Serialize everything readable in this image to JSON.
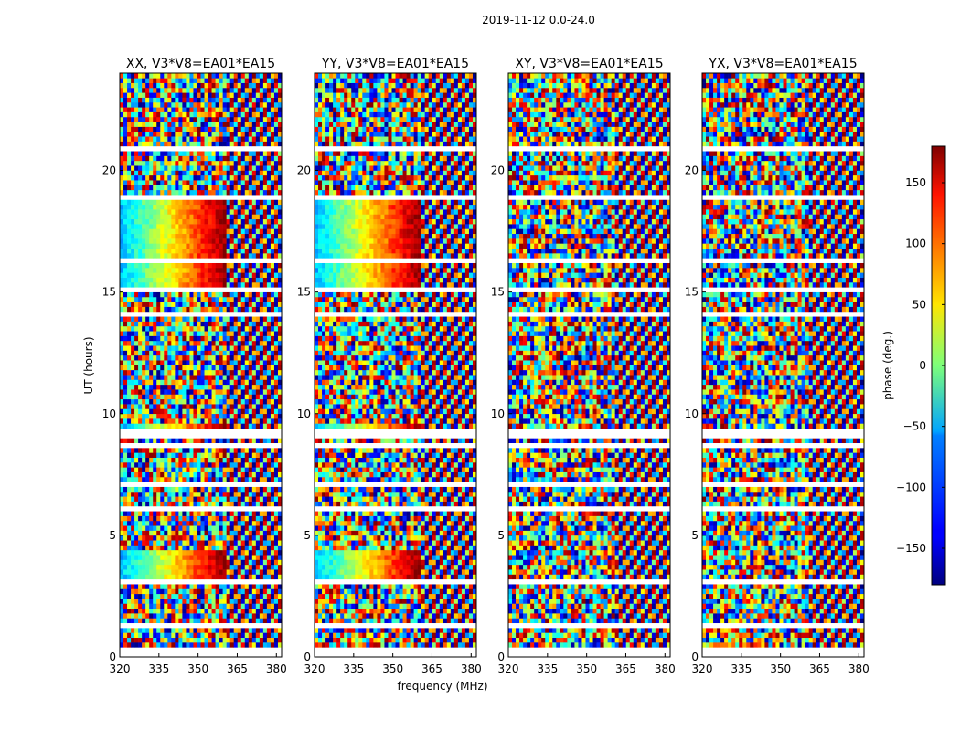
{
  "figure": {
    "suptitle": "2019-11-12 0.0-24.0"
  },
  "chart_data": {
    "type": "heatmap",
    "title": "2019-11-12 0.0-24.0",
    "xlabel": "frequency (MHz)",
    "ylabel": "UT (hours)",
    "xlim": [
      320,
      382
    ],
    "ylim": [
      0,
      24
    ],
    "xticks": [
      "320",
      "335",
      "350",
      "365",
      "380"
    ],
    "yticks": [
      "0",
      "5",
      "10",
      "15",
      "20"
    ],
    "panels": [
      {
        "title": "XX, V3*V8=EA01*EA15"
      },
      {
        "title": "YY, V3*V8=EA01*EA15"
      },
      {
        "title": "XY, V3*V8=EA01*EA15"
      },
      {
        "title": "YX, V3*V8=EA01*EA15"
      }
    ],
    "colorbar": {
      "label": "phase (deg.)",
      "range": [
        -180,
        180
      ],
      "ticks": [
        "−150",
        "−100",
        "−50",
        "0",
        "50",
        "100",
        "150"
      ],
      "colormap": "jet"
    }
  }
}
